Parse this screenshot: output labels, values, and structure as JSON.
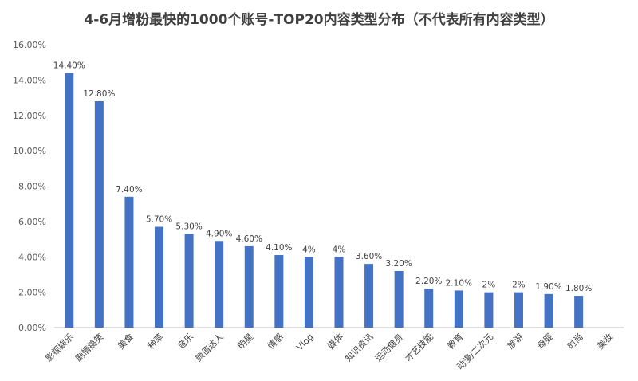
{
  "chart_data": {
    "type": "bar",
    "title": "4-6月增粉最快的1000个账号-TOP20内容类型分布（不代表所有内容类型）",
    "xlabel": "",
    "ylabel": "",
    "ylim": [
      0,
      16
    ],
    "yticks": [
      "0.00%",
      "2.00%",
      "4.00%",
      "6.00%",
      "8.00%",
      "10.00%",
      "12.00%",
      "14.00%",
      "16.00%"
    ],
    "grid": false,
    "legend": "none",
    "bar_color": "#4472C4",
    "categories": [
      "影视娱乐",
      "剧情搞笑",
      "美食",
      "种草",
      "音乐",
      "颜值达人",
      "明星",
      "情感",
      "Vlog",
      "媒体",
      "知识资讯",
      "运动健身",
      "才艺技能",
      "教育",
      "动漫/二次元",
      "旅游",
      "母婴",
      "时尚",
      "美妆"
    ],
    "values": [
      14.4,
      12.8,
      7.4,
      5.7,
      5.3,
      4.9,
      4.6,
      4.1,
      4,
      4,
      3.6,
      3.2,
      2.2,
      2.1,
      2,
      2,
      1.9,
      1.8,
      null
    ],
    "data_labels": [
      "14.40%",
      "12.80%",
      "7.40%",
      "5.70%",
      "5.30%",
      "4.90%",
      "4.60%",
      "4.10%",
      "4%",
      "4%",
      "3.60%",
      "3.20%",
      "2.20%",
      "2.10%",
      "2%",
      "2%",
      "1.90%",
      "1.80%",
      ""
    ]
  }
}
